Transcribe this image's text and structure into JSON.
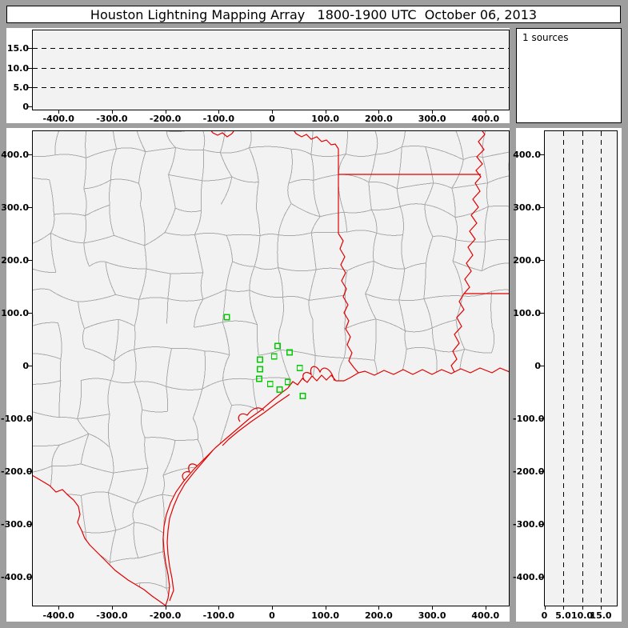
{
  "header": {
    "title": "Houston Lightning Mapping Array   1800-1900 UTC  October 06, 2013"
  },
  "sources_panel": {
    "label": "1 sources"
  },
  "colors": {
    "frame_gray": "#9e9e9e",
    "panel_fill": "#f2f2f2",
    "panel_bg": "#ffffff",
    "county_line": "#a9a9a9",
    "state_line": "#e10000",
    "station_green": "#00cc00",
    "text": "#000000",
    "grid_dash": "#000000"
  },
  "chart_data": {
    "type": "scatter",
    "title": "Houston Lightning Mapping Array   1800-1900 UTC  October 06, 2013",
    "sources_count_label": "1 sources",
    "sources_count": 1,
    "panels": [
      {
        "id": "altitude-vs-east-west",
        "position": "top",
        "points": [],
        "x_axis": {
          "tick_labels": [
            "-400.0",
            "-300.0",
            "-200.0",
            "-100.0",
            "0",
            "100.0",
            "200.0",
            "300.0",
            "400.0"
          ],
          "tick_values": [
            -400,
            -300,
            -200,
            -100,
            0,
            100,
            200,
            300,
            400
          ],
          "range_km": [
            -450,
            445
          ]
        },
        "y_axis": {
          "tick_labels": [
            "0",
            "5.0",
            "10.0",
            "15.0"
          ],
          "tick_values": [
            0,
            5,
            10,
            15
          ],
          "range_km": [
            -1,
            20
          ],
          "dashed_gridlines": [
            5,
            10,
            15
          ]
        }
      },
      {
        "id": "plan-view-map",
        "position": "main",
        "points": [],
        "x_axis": {
          "tick_labels": [
            "-400.0",
            "-300.0",
            "-200.0",
            "-100.0",
            "0",
            "100.0",
            "200.0",
            "300.0",
            "400.0"
          ],
          "tick_values": [
            -400,
            -300,
            -200,
            -100,
            0,
            100,
            200,
            300,
            400
          ],
          "range_km": [
            -450,
            445
          ]
        },
        "y_axis": {
          "tick_labels": [
            "400.0",
            "300.0",
            "200.0",
            "100.0",
            "0",
            "-100.0",
            "-200.0",
            "-300.0",
            "-400.0"
          ],
          "tick_values": [
            400,
            300,
            200,
            100,
            0,
            -100,
            -200,
            -300,
            -400
          ],
          "range_km": [
            -455,
            446
          ]
        },
        "station_markers_km": [
          [
            -85.0,
            92.4
          ],
          [
            10.5,
            37.9
          ],
          [
            33.0,
            25.8
          ],
          [
            4.0,
            18.2
          ],
          [
            -22.5,
            12.1
          ],
          [
            -22.5,
            -6.1
          ],
          [
            52.0,
            -4.1
          ],
          [
            -24.0,
            -24.2
          ],
          [
            29.5,
            -30.3
          ],
          [
            -3.4,
            -34.4
          ],
          [
            13.9,
            -45.0
          ],
          [
            57.4,
            -57.1
          ]
        ],
        "map_layers": [
          "county-borders-gray",
          "state-borders-red",
          "coastline-red",
          "rivers-red",
          "lma-station-squares-green"
        ]
      },
      {
        "id": "altitude-vs-north-south",
        "position": "right",
        "points": [],
        "x_axis": {
          "tick_labels": [
            "0",
            "5.0",
            "10.0",
            "15.0"
          ],
          "tick_values": [
            0,
            5,
            10,
            15
          ],
          "range_km": [
            0,
            19.5
          ],
          "dashed_gridlines": [
            5,
            10,
            15
          ]
        },
        "y_axis": {
          "tick_labels": [
            "400.0",
            "300.0",
            "200.0",
            "100.0",
            "0",
            "-100.0",
            "-200.0",
            "-300.0",
            "-400.0"
          ],
          "tick_values": [
            400,
            300,
            200,
            100,
            0,
            -100,
            -200,
            -300,
            -400
          ],
          "range_km": [
            -455,
            446
          ]
        }
      }
    ]
  }
}
